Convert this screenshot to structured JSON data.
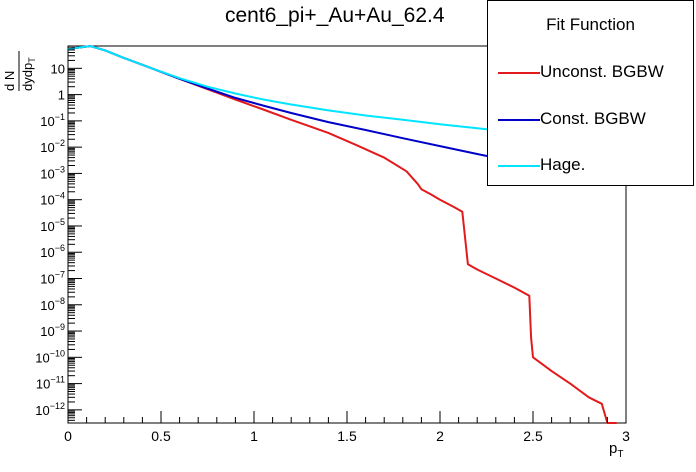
{
  "chart_data": {
    "type": "line",
    "title": "cent6_pi+_Au+Au_62.4",
    "xlabel_main": "p",
    "xlabel_sub": "T",
    "ylabel_num": "d N",
    "ylabel_den_main": "dydp",
    "ylabel_den_sub": "T",
    "xlim": [
      0,
      3
    ],
    "ylim_log10": [
      -12.5,
      1.85
    ],
    "y_scale": "log",
    "grid": false,
    "legend_position": "top-right",
    "x_ticks": [
      {
        "value": 0,
        "label": "0"
      },
      {
        "value": 0.5,
        "label": "0.5"
      },
      {
        "value": 1,
        "label": "1"
      },
      {
        "value": 1.5,
        "label": "1.5"
      },
      {
        "value": 2,
        "label": "2"
      },
      {
        "value": 2.5,
        "label": "2.5"
      },
      {
        "value": 3,
        "label": "3"
      }
    ],
    "y_ticks": [
      {
        "exp": 1,
        "base": "10",
        "sup": ""
      },
      {
        "exp": 0,
        "base": "1",
        "sup": ""
      },
      {
        "exp": -1,
        "base": "10",
        "sup": "−1"
      },
      {
        "exp": -2,
        "base": "10",
        "sup": "−2"
      },
      {
        "exp": -3,
        "base": "10",
        "sup": "−3"
      },
      {
        "exp": -4,
        "base": "10",
        "sup": "−4"
      },
      {
        "exp": -5,
        "base": "10",
        "sup": "−5"
      },
      {
        "exp": -6,
        "base": "10",
        "sup": "−6"
      },
      {
        "exp": -7,
        "base": "10",
        "sup": "−7"
      },
      {
        "exp": -8,
        "base": "10",
        "sup": "−8"
      },
      {
        "exp": -9,
        "base": "10",
        "sup": "−9"
      },
      {
        "exp": -10,
        "base": "10",
        "sup": "−10"
      },
      {
        "exp": -11,
        "base": "10",
        "sup": "−11"
      },
      {
        "exp": -12,
        "base": "10",
        "sup": "−12"
      }
    ],
    "series": [
      {
        "name": "Unconst. BGBW",
        "color": "#e31a1c",
        "x": [
          0.0,
          0.06,
          0.12,
          0.2,
          0.3,
          0.45,
          0.6,
          0.75,
          0.9,
          1.05,
          1.2,
          1.4,
          1.55,
          1.7,
          1.82,
          1.88,
          1.9,
          1.95,
          2.0,
          2.07,
          2.12,
          2.15,
          2.2,
          2.3,
          2.4,
          2.48,
          2.49,
          2.5,
          2.6,
          2.7,
          2.8,
          2.87,
          2.9,
          2.91,
          2.93,
          2.95
        ],
        "y": [
          55,
          62,
          70,
          48,
          25,
          10,
          4,
          1.6,
          0.65,
          0.27,
          0.11,
          0.035,
          0.012,
          0.004,
          0.0012,
          0.0004,
          0.00025,
          0.00016,
          0.0001,
          5.5e-05,
          3.5e-05,
          3.5e-07,
          2.2e-07,
          1e-07,
          4.5e-08,
          2.2e-08,
          5.5e-10,
          1e-10,
          3e-11,
          1e-11,
          3e-12,
          1.7e-12,
          2e-13,
          2e-14,
          7e-15,
          4e-15
        ]
      },
      {
        "name": "Const. BGBW",
        "color": "#0000c8",
        "x": [
          0.0,
          0.06,
          0.12,
          0.2,
          0.3,
          0.45,
          0.6,
          0.75,
          0.9,
          1.05,
          1.2,
          1.4,
          1.6,
          1.8,
          2.0,
          2.2,
          2.4,
          2.6,
          2.8,
          2.97
        ],
        "y": [
          55,
          62,
          70,
          48,
          25,
          10,
          4,
          1.7,
          0.75,
          0.38,
          0.2,
          0.09,
          0.045,
          0.022,
          0.011,
          0.0055,
          0.0028,
          0.0015,
          0.0008,
          0.00045
        ]
      },
      {
        "name": "Hage.",
        "color": "#00e5ff",
        "x": [
          0.0,
          0.06,
          0.12,
          0.2,
          0.3,
          0.45,
          0.6,
          0.75,
          0.9,
          1.05,
          1.2,
          1.4,
          1.6,
          1.8,
          2.0,
          2.2,
          2.4,
          2.6,
          2.8,
          2.97
        ],
        "y": [
          55,
          62,
          70,
          48,
          25,
          10,
          4.2,
          2.0,
          1.1,
          0.65,
          0.42,
          0.25,
          0.16,
          0.11,
          0.075,
          0.052,
          0.037,
          0.027,
          0.02,
          0.016
        ]
      }
    ]
  },
  "legend": {
    "header": "Fit Function",
    "items": [
      "Unconst. BGBW",
      "Const. BGBW",
      "Hage."
    ]
  }
}
